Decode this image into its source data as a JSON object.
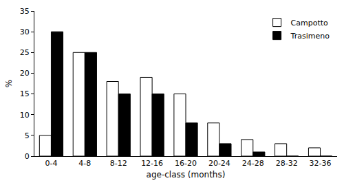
{
  "chart_data": {
    "type": "bar",
    "x_label": "age-class (months)",
    "y_label": "%",
    "categories": [
      "0-4",
      "4-8",
      "8-12",
      "12-16",
      "16-20",
      "20-24",
      "24-28",
      "28-32",
      "32-36"
    ],
    "series": [
      {
        "name": "Campotto",
        "color": "#ffffff",
        "values": [
          5,
          25,
          18,
          19,
          15,
          8,
          4,
          3,
          2
        ]
      },
      {
        "name": "Trasimeno",
        "color": "#000000",
        "values": [
          30,
          25,
          15,
          15,
          8,
          3,
          1,
          0,
          0
        ]
      }
    ],
    "ylim": [
      0,
      35
    ],
    "yticks": [
      0,
      5,
      10,
      15,
      20,
      25,
      30,
      35
    ],
    "grid": false,
    "legend": "upper right"
  }
}
